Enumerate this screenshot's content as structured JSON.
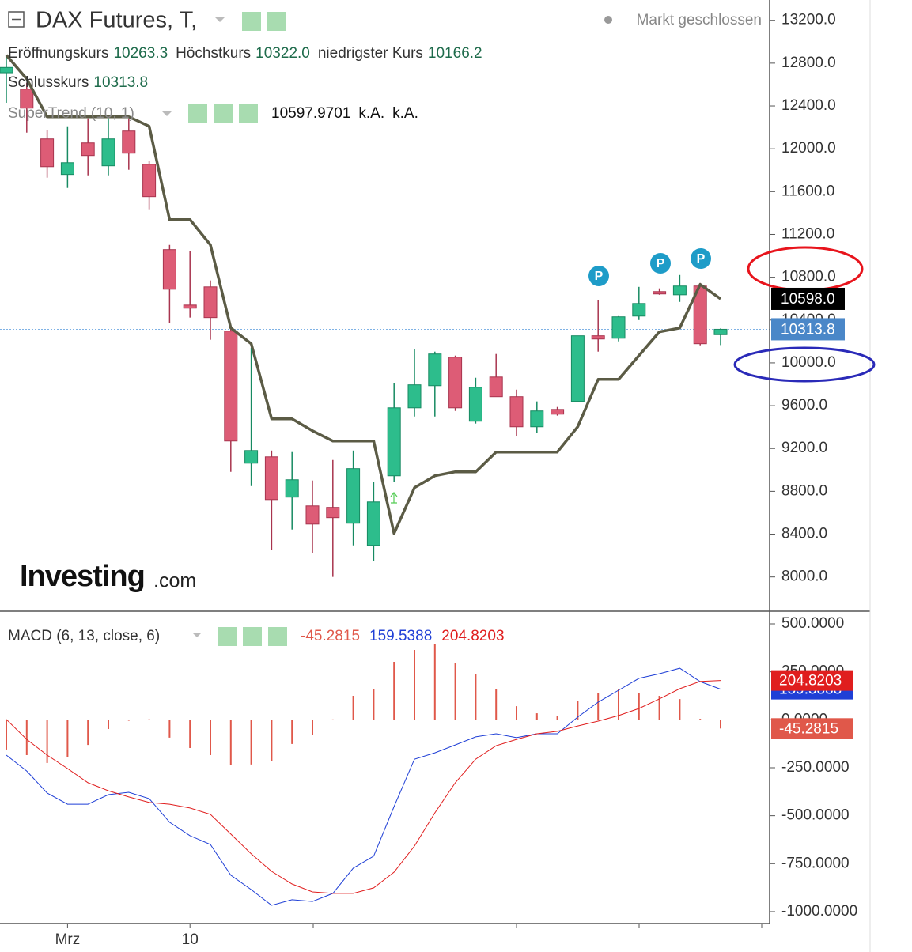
{
  "chart_data": [
    {
      "type": "candlestick",
      "title": "DAX Futures, T,",
      "status": "Markt geschlossen",
      "info_rows": [
        [
          {
            "label": "Eröffnungskurs",
            "value": "10263.3"
          },
          {
            "label": "Höchstkurs",
            "value": "10322.0"
          },
          {
            "label": "niedrigster Kurs",
            "value": "10166.2"
          }
        ],
        [
          {
            "label": "Schlusskurs",
            "value": "10313.8"
          }
        ]
      ],
      "open": [
        12710,
        12557,
        12092,
        11760,
        12055,
        11841,
        12166,
        11855,
        11058,
        10540,
        10710,
        10297,
        9063,
        9122,
        8746,
        8664,
        8650,
        8502,
        8295,
        8945,
        9580,
        9787,
        10053,
        9455,
        9868,
        9684,
        9403,
        9565,
        9640,
        10253,
        10230,
        10437,
        10666,
        10636,
        10718,
        10263.3
      ],
      "high": [
        12880,
        12616,
        12173,
        12210,
        12284,
        12284,
        12284,
        11885,
        11102,
        11043,
        10770,
        10326,
        10142,
        9181,
        9167,
        8901,
        9093,
        9181,
        8886,
        9809,
        10127,
        10105,
        10068,
        9861,
        10083,
        9750,
        9640,
        9588,
        10253,
        10585,
        10437,
        10710,
        10696,
        10821,
        10747,
        10322
      ],
      "low": [
        12430,
        12151,
        11730,
        11634,
        11752,
        11752,
        11804,
        11435,
        10371,
        10423,
        10216,
        8982,
        8849,
        8251,
        8443,
        8221,
        8000,
        8295,
        8147,
        8886,
        9499,
        9499,
        9551,
        9433,
        9684,
        9315,
        9344,
        9507,
        9640,
        10105,
        10201,
        10400,
        10636,
        10570,
        10164,
        10166.2
      ],
      "close": [
        12760,
        12380,
        11833,
        11870,
        11937,
        12092,
        11959,
        11553,
        10688,
        10511,
        10423,
        9270,
        9181,
        8723,
        8908,
        8494,
        8554,
        9012,
        8701,
        9580,
        9795,
        10083,
        9580,
        9772,
        9684,
        9403,
        9551,
        9521,
        10253,
        10223,
        10430,
        10555,
        10644,
        10718,
        10179,
        10313.8
      ],
      "up_color": "#2dbd8c",
      "down_color": "#dd5c76",
      "last_price_label": "10313.8",
      "series": [
        {
          "name": "SuperTrend (10, 1)",
          "color": "#5b5b45",
          "values": [
            12875,
            12653,
            12299,
            12299,
            12299,
            12299,
            12299,
            12210,
            11339,
            11339,
            11102,
            10326,
            10179,
            9477,
            9477,
            9366,
            9270,
            9270,
            9270,
            8406,
            8834,
            8945,
            8982,
            8982,
            9167,
            9167,
            9167,
            9167,
            9403,
            9846,
            9846,
            10068,
            10290,
            10326,
            10733,
            10597.9701
          ],
          "legend_values": [
            "10597.9701",
            "k.A.",
            "k.A."
          ],
          "value_label": "10598.0"
        }
      ],
      "marker_label": "P",
      "watermark": [
        "Investing",
        ".com"
      ],
      "ylim": [
        7680,
        13390
      ],
      "yticks": [
        {
          "value": 8000,
          "label": "8000.0"
        },
        {
          "value": 8400,
          "label": "8400.0"
        },
        {
          "value": 8800,
          "label": "8800.0"
        },
        {
          "value": 9200,
          "label": "9200.0"
        },
        {
          "value": 9600,
          "label": "9600.0"
        },
        {
          "value": 10000,
          "label": "10000.0"
        },
        {
          "value": 10400,
          "label": "10400.0"
        },
        {
          "value": 10800,
          "label": "10800.0"
        },
        {
          "value": 11200,
          "label": "11200.0"
        },
        {
          "value": 11600,
          "label": "11600.0"
        },
        {
          "value": 12000,
          "label": "12000.0"
        },
        {
          "value": 12400,
          "label": "12400.0"
        },
        {
          "value": 12800,
          "label": "12800.0"
        },
        {
          "value": 13200,
          "label": "13200.0"
        }
      ]
    },
    {
      "type": "macd",
      "title": "MACD (6, 13, close, 6)",
      "categories": [
        null,
        null,
        null,
        "Mrz",
        null,
        null,
        null,
        null,
        null,
        "10",
        null,
        null,
        null,
        null,
        null,
        null,
        null,
        null,
        null,
        null,
        null,
        null,
        null,
        null,
        null,
        null,
        null,
        null,
        null,
        null,
        null,
        null,
        null,
        null,
        null,
        null
      ],
      "series": [
        {
          "type": "bar",
          "color": "#e0584a",
          "values": [
            -155,
            -184,
            -225,
            -196,
            -131,
            -48,
            -5,
            3,
            -93,
            -147,
            -184,
            -237,
            -233,
            -213,
            -126,
            -81,
            2,
            125,
            158,
            302,
            364,
            397,
            298,
            240,
            158,
            71,
            34,
            22,
            100,
            141,
            158,
            141,
            125,
            108,
            5,
            -45.2815
          ]
        },
        {
          "type": "line",
          "color": "#1f3fd6",
          "values": [
            -184,
            -267,
            -382,
            -440,
            -440,
            -390,
            -378,
            -411,
            -534,
            -604,
            -650,
            -810,
            -885,
            -967,
            -938,
            -947,
            -905,
            -773,
            -711,
            -452,
            -205,
            -172,
            -131,
            -89,
            -73,
            -93,
            -73,
            -73,
            14,
            92,
            154,
            216,
            240,
            269,
            199,
            159.5388
          ]
        },
        {
          "type": "line",
          "color": "#e01e1e",
          "values": [
            2,
            -102,
            -184,
            -254,
            -328,
            -370,
            -402,
            -431,
            -440,
            -460,
            -493,
            -596,
            -699,
            -790,
            -856,
            -897,
            -905,
            -905,
            -876,
            -794,
            -658,
            -485,
            -328,
            -205,
            -135,
            -102,
            -73,
            -60,
            -32,
            -7,
            22,
            59,
            109,
            162,
            200,
            204.8203
          ]
        }
      ],
      "legend_values": [
        "-45.2815",
        "159.5388",
        "204.8203"
      ],
      "ylim": [
        -1062,
        566
      ],
      "yticks": [
        {
          "value": 500,
          "label": "500.0000"
        },
        {
          "value": 250,
          "label": "250.0000"
        },
        {
          "value": 0,
          "label": "0.0000"
        },
        {
          "value": -250,
          "label": "-250.0000"
        },
        {
          "value": -500,
          "label": "-500.0000"
        },
        {
          "value": -750,
          "label": "-750.0000"
        },
        {
          "value": -1000,
          "label": "-1000.0000"
        }
      ]
    }
  ]
}
